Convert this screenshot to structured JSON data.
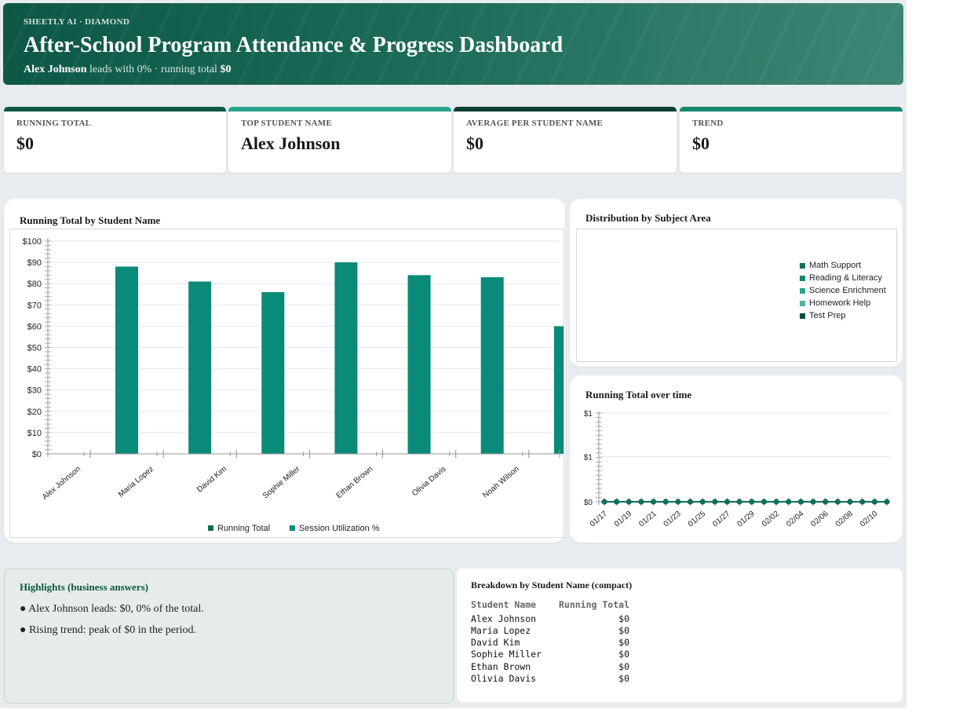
{
  "header": {
    "kicker": "SHEETLY AI · DIAMOND",
    "title": "After-School Program Attendance & Progress Dashboard",
    "sub_leader": "Alex Johnson",
    "sub_mid": " leads with 0% · running total ",
    "sub_total": "$0"
  },
  "kpis": [
    {
      "label": "RUNNING TOTAL",
      "value": "$0",
      "color": "#0d5747"
    },
    {
      "label": "TOP STUDENT NAME",
      "value": "Alex Johnson",
      "color": "#2aa38d"
    },
    {
      "label": "AVERAGE PER STUDENT NAME",
      "value": "$0",
      "color": "#0b3d33"
    },
    {
      "label": "TREND",
      "value": "$0",
      "color": "#14886f"
    }
  ],
  "bar_card": {
    "title": "Running Total by Student Name"
  },
  "pie_card": {
    "title": "Distribution by Subject Area"
  },
  "line_card": {
    "title": "Running Total over time"
  },
  "chart_data": [
    {
      "type": "bar",
      "title": "Running Total by Student Name",
      "categories": [
        "Alex Johnson",
        "Maria Lopez",
        "David Kim",
        "Sophie Miller",
        "Ethan Brown",
        "Olivia Davis",
        "Noah Wilson"
      ],
      "series": [
        {
          "name": "Running Total",
          "values": [
            0,
            0,
            0,
            0,
            0,
            0,
            0
          ],
          "color": "#0f6e5c"
        },
        {
          "name": "Session Utilization %",
          "values": [
            88,
            81,
            76,
            90,
            84,
            83,
            60
          ],
          "color": "#0a8a78"
        }
      ],
      "yticks": [
        "$0",
        "$10",
        "$20",
        "$30",
        "$40",
        "$50",
        "$60",
        "$70",
        "$80",
        "$90",
        "$100"
      ],
      "ylim": [
        0,
        100
      ],
      "grid": true,
      "legend": "bottom"
    },
    {
      "type": "pie",
      "title": "Distribution by Subject Area",
      "legend": "right",
      "categories": [
        "Math Support",
        "Reading & Literacy",
        "Science Enrichment",
        "Homework Help",
        "Test Prep"
      ],
      "values": [
        0,
        0,
        0,
        0,
        0
      ],
      "colors": [
        "#0f6e5c",
        "#14886f",
        "#2aa38d",
        "#4fb5a3",
        "#0b4d40"
      ]
    },
    {
      "type": "line",
      "title": "Running Total over time",
      "x": [
        "01/17",
        "01/18",
        "01/19",
        "01/20",
        "01/21",
        "01/22",
        "01/23",
        "01/24",
        "01/25",
        "01/26",
        "01/27",
        "01/28",
        "01/29",
        "01/30",
        "02/02",
        "02/03",
        "02/04",
        "02/05",
        "02/06",
        "02/07",
        "02/08",
        "02/09",
        "02/10",
        "02/11"
      ],
      "xticks": [
        "01/17",
        "01/19",
        "01/21",
        "01/23",
        "01/25",
        "01/27",
        "01/29",
        "02/02",
        "02/04",
        "02/06",
        "02/08",
        "02/10"
      ],
      "series": [
        {
          "name": "Running Total",
          "values": [
            0,
            0,
            0,
            0,
            0,
            0,
            0,
            0,
            0,
            0,
            0,
            0,
            0,
            0,
            0,
            0,
            0,
            0,
            0,
            0,
            0,
            0,
            0,
            0
          ],
          "color": "#0f6e5c"
        }
      ],
      "yticks": [
        "$0",
        "$1",
        "$1"
      ],
      "ylim": [
        0,
        1
      ],
      "grid": true
    }
  ],
  "highlights": {
    "title": "Highlights (business answers)",
    "items": [
      "● Alex Johnson leads: $0, 0% of the total.",
      "● Rising trend: peak of $0 in the period."
    ]
  },
  "breakdown": {
    "title": "Breakdown by Student Name (compact)",
    "headers": [
      "Student Name",
      "Running Total"
    ],
    "rows": [
      [
        "Alex Johnson",
        "$0"
      ],
      [
        "Maria Lopez",
        "$0"
      ],
      [
        "David Kim",
        "$0"
      ],
      [
        "Sophie Miller",
        "$0"
      ],
      [
        "Ethan Brown",
        "$0"
      ],
      [
        "Olivia Davis",
        "$0"
      ]
    ]
  }
}
